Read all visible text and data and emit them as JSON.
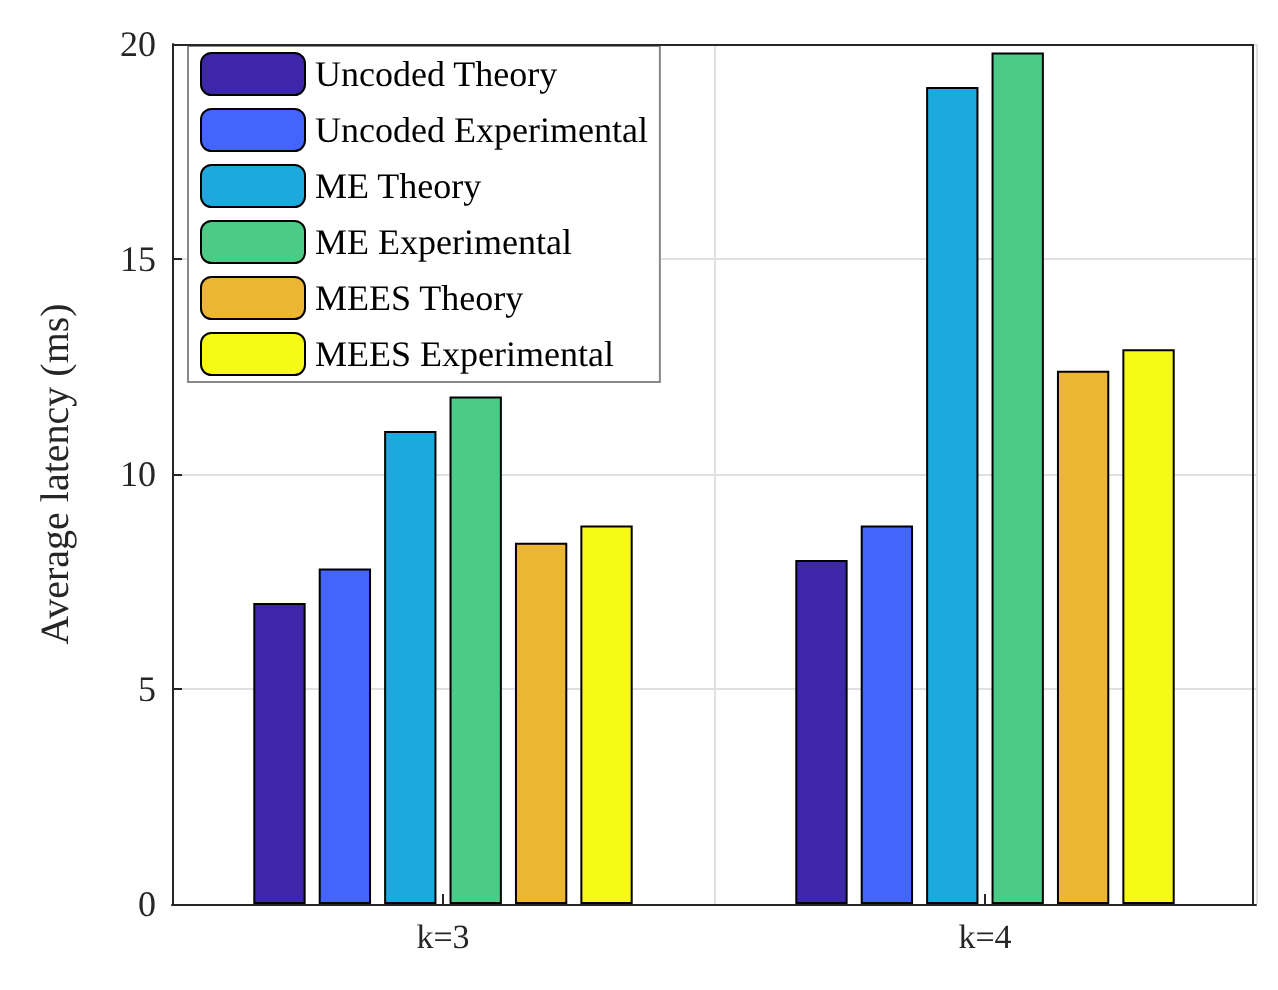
{
  "chart_data": {
    "type": "bar",
    "ylabel": "Average latency (ms)",
    "categories": [
      "k=3",
      "k=4"
    ],
    "series": [
      {
        "name": "Uncoded Theory",
        "color": "#3e26a8",
        "values": [
          7.0,
          8.0
        ]
      },
      {
        "name": "Uncoded Experimental",
        "color": "#4465fd",
        "values": [
          7.8,
          8.8
        ]
      },
      {
        "name": "ME Theory",
        "color": "#1ea9de",
        "values": [
          11.0,
          19.0
        ]
      },
      {
        "name": "ME Experimental",
        "color": "#4bcb86",
        "values": [
          11.8,
          19.8
        ]
      },
      {
        "name": "MEES Theory",
        "color": "#edb534",
        "values": [
          8.4,
          12.4
        ]
      },
      {
        "name": "MEES Experimental",
        "color": "#f7f917",
        "values": [
          8.8,
          12.9
        ]
      }
    ],
    "ylim": [
      0,
      20
    ],
    "yticks": [
      0,
      5,
      10,
      15,
      20
    ],
    "grid": true,
    "legend": "top left"
  }
}
